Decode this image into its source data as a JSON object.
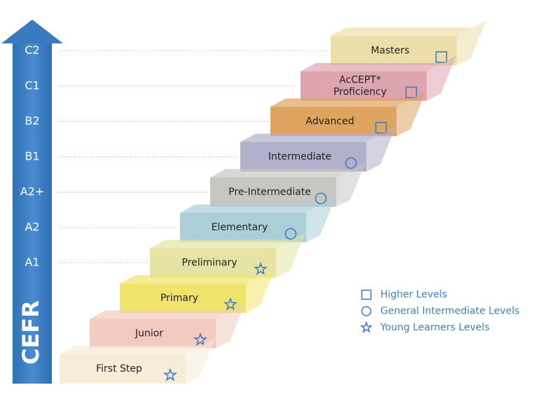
{
  "axis": {
    "title": "CEFR",
    "levels": [
      "C2",
      "C1",
      "B2",
      "B1",
      "A2+",
      "A2",
      "A1"
    ]
  },
  "steps": [
    {
      "lines": [
        "First Step"
      ],
      "icon": "star",
      "color": "#f6ecd8"
    },
    {
      "lines": [
        "Junior"
      ],
      "icon": "star",
      "color": "#f2cabf"
    },
    {
      "lines": [
        "Primary"
      ],
      "icon": "star",
      "color": "#f1e46c"
    },
    {
      "lines": [
        "Preliminary"
      ],
      "icon": "star",
      "color": "#e6e4a4"
    },
    {
      "lines": [
        "Elementary"
      ],
      "icon": "circle",
      "color": "#aacfd9"
    },
    {
      "lines": [
        "Pre-Intermediate"
      ],
      "icon": "circle",
      "color": "#c6c6c2"
    },
    {
      "lines": [
        "Intermediate"
      ],
      "icon": "circle",
      "color": "#b0afcc"
    },
    {
      "lines": [
        "Advanced"
      ],
      "icon": "square",
      "color": "#dfa45f"
    },
    {
      "lines": [
        "AcCEPT*",
        "Proficiency"
      ],
      "icon": "square",
      "color": "#dea4af"
    },
    {
      "lines": [
        "Masters"
      ],
      "icon": "square",
      "color": "#ecdfa9"
    }
  ],
  "legend": [
    {
      "icon": "square",
      "label": "Higher Levels"
    },
    {
      "icon": "circle",
      "label": "General Intermediate Levels"
    },
    {
      "icon": "star",
      "label": "Young Learners Levels"
    }
  ]
}
